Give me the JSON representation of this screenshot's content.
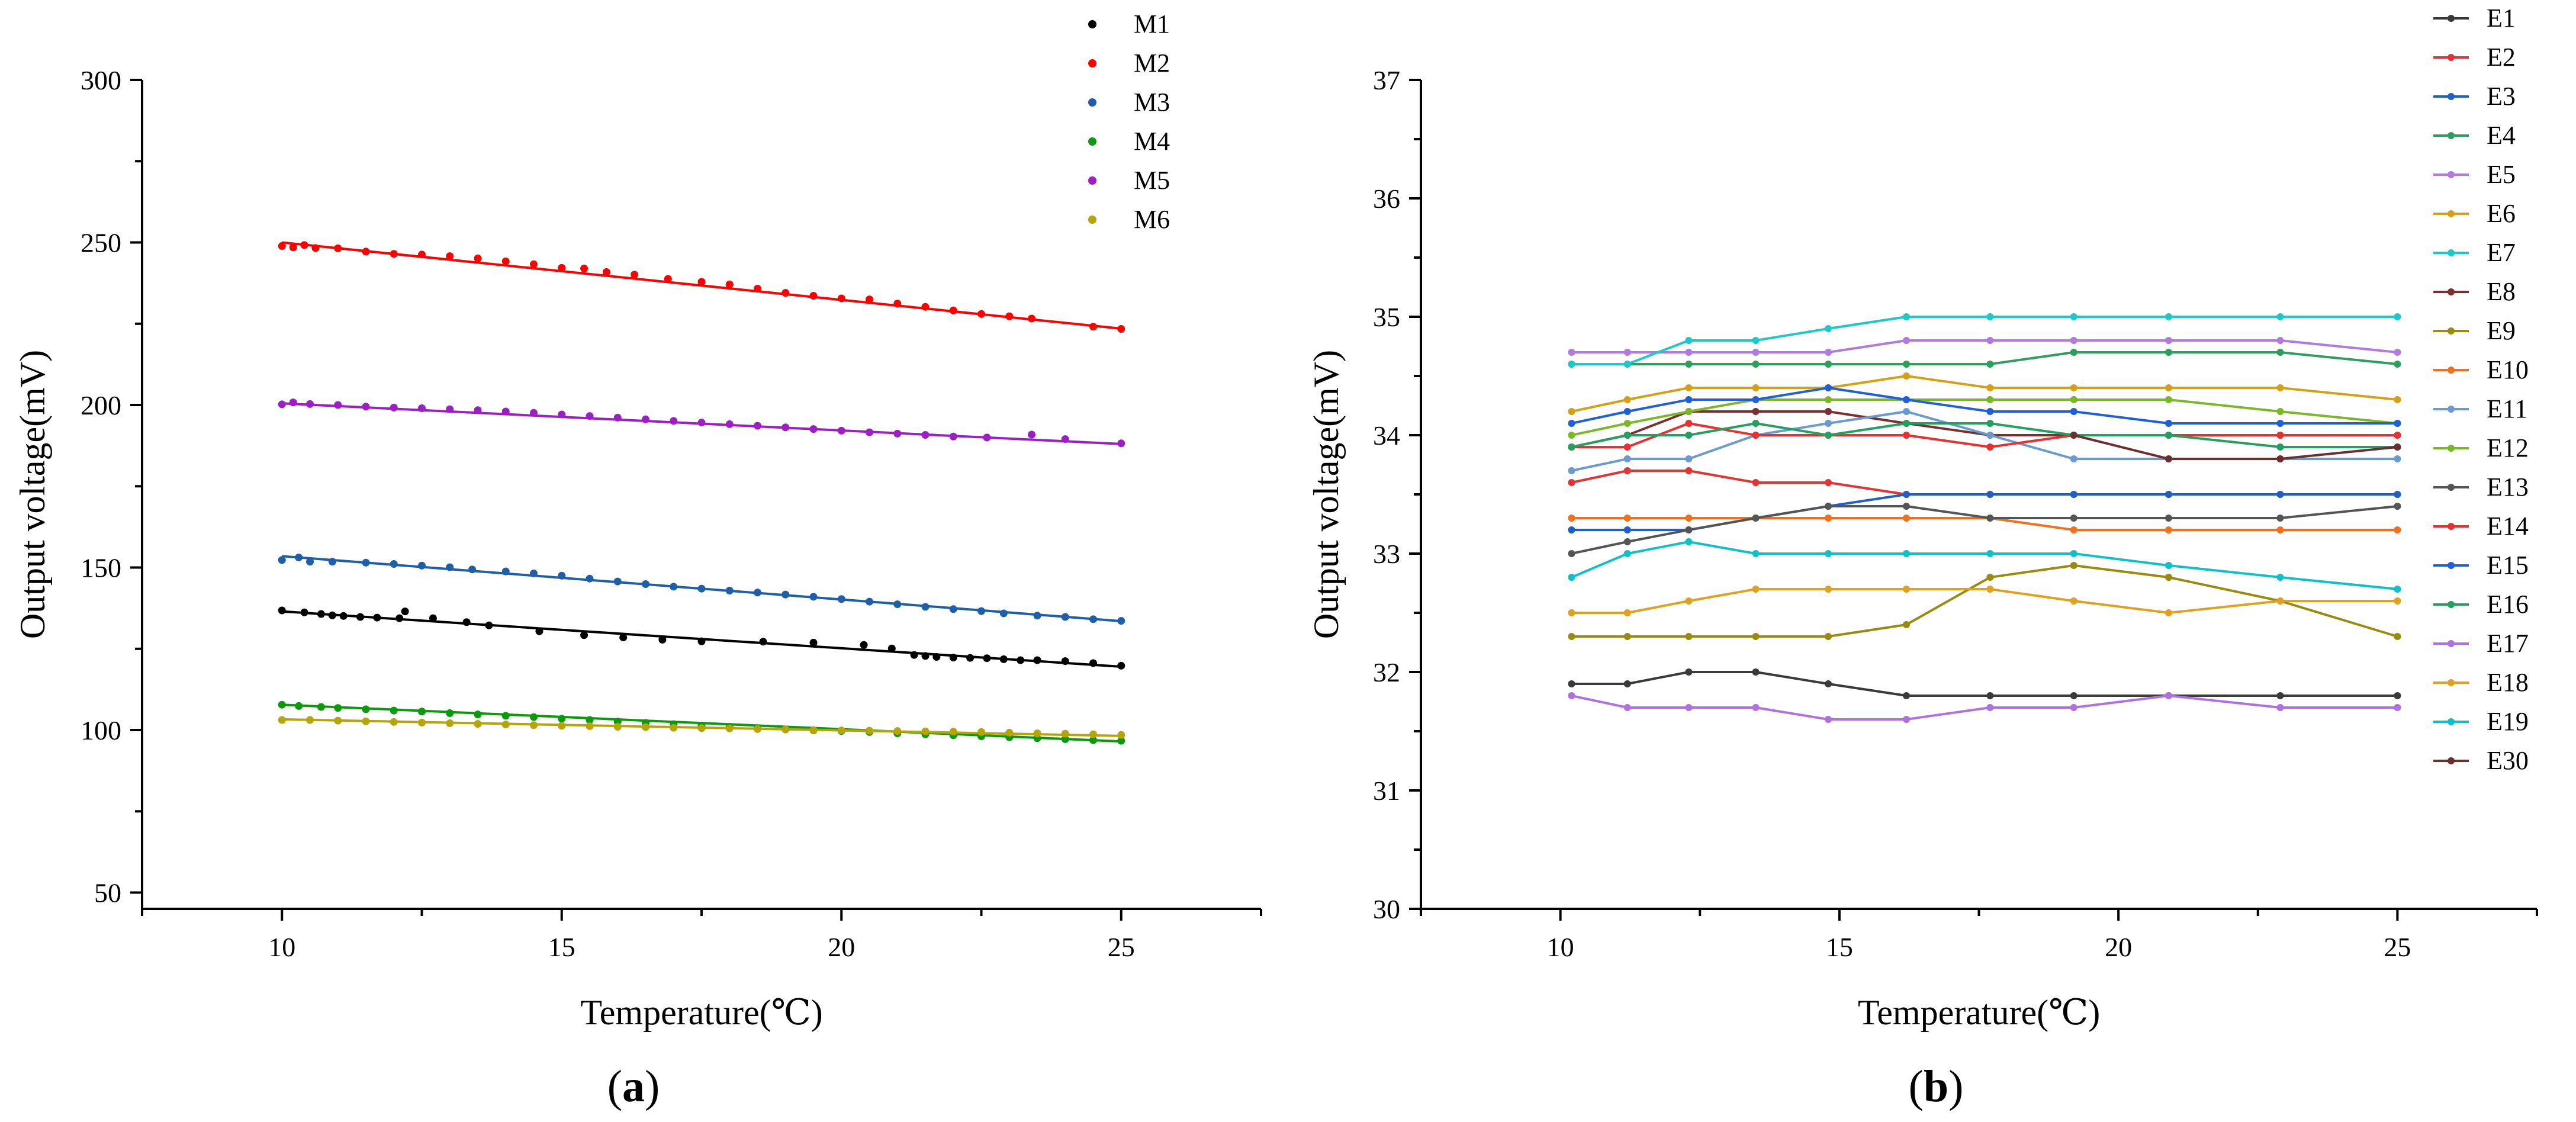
{
  "panel_labels": {
    "a_open": "(",
    "a_letter": "a",
    "a_close": ")",
    "b_open": "(",
    "b_letter": "b",
    "b_close": ")"
  },
  "chart_data": [
    {
      "panel": "a",
      "type": "scatter",
      "xlabel": "Temperature(℃)",
      "ylabel": "Output voltage(mV)",
      "xlim": [
        7.5,
        27.5
      ],
      "ylim": [
        45,
        300
      ],
      "xticks": [
        "10",
        "15",
        "20",
        "25"
      ],
      "yticks": [
        "50",
        "100",
        "150",
        "200",
        "250",
        "300"
      ],
      "grid": false,
      "legend_position": "top-right",
      "series": [
        {
          "name": "M1",
          "color": "#000000",
          "fit": [
            136.5,
            119.5
          ],
          "x": [
            10,
            10.4,
            10.7,
            10.9,
            11.1,
            11.4,
            11.7,
            12.1,
            12.2,
            12.7,
            13.3,
            13.7,
            14.6,
            15.4,
            16.1,
            16.8,
            17.5,
            18.6,
            19.5,
            20.4,
            20.9,
            21.3,
            21.5,
            21.7,
            22,
            22.3,
            22.6,
            22.9,
            23.2,
            23.5,
            24,
            24.5,
            25
          ],
          "y": [
            136.8,
            136.2,
            135.7,
            135.3,
            135.1,
            134.8,
            134.6,
            134.4,
            136.5,
            134.4,
            133.2,
            132.2,
            130.4,
            129.2,
            128.5,
            127.8,
            127.3,
            127.2,
            126.9,
            126.2,
            125.1,
            123.1,
            122.8,
            122.5,
            122.3,
            122.2,
            122.1,
            121.8,
            121.5,
            121.5,
            121.2,
            120.6,
            119.8
          ]
        },
        {
          "name": "M2",
          "color": "#ff0000",
          "fit": [
            250,
            223.5
          ],
          "x": [
            10,
            10.2,
            10.4,
            10.6,
            11,
            11.5,
            12,
            12.5,
            13,
            13.5,
            14,
            14.5,
            15,
            15.4,
            15.8,
            16.3,
            16.9,
            17.5,
            18,
            18.5,
            19,
            19.5,
            20,
            20.5,
            21,
            21.5,
            22,
            22.5,
            23,
            23.4,
            24.5,
            25
          ],
          "y": [
            248.9,
            248.5,
            249.2,
            248.3,
            248.2,
            247.2,
            246.5,
            246.3,
            245.8,
            245.1,
            244.2,
            243.3,
            242.2,
            242,
            240.9,
            240.1,
            238.8,
            237.9,
            237.1,
            235.8,
            234.5,
            233.6,
            232.8,
            232.5,
            231.2,
            230.2,
            229.1,
            228,
            227.3,
            226.6,
            224.1,
            223.4
          ]
        },
        {
          "name": "M3",
          "color": "#1f5fa8",
          "fit": [
            153.5,
            133.5
          ],
          "x": [
            10,
            10.3,
            10.5,
            10.9,
            11.5,
            12,
            12.5,
            13,
            13.4,
            14,
            14.5,
            15,
            15.5,
            16,
            16.5,
            17,
            17.5,
            18,
            18.5,
            19,
            19.5,
            20,
            20.5,
            21,
            21.5,
            22,
            22.5,
            22.9,
            23.5,
            24,
            24.5,
            25
          ],
          "y": [
            152.3,
            153.1,
            151.8,
            151.8,
            151.5,
            151.1,
            150.6,
            150.1,
            149.4,
            148.8,
            148.2,
            147.5,
            146.6,
            145.7,
            144.9,
            144.1,
            143.5,
            142.9,
            142.3,
            141.7,
            141,
            140.3,
            139.5,
            138.7,
            137.9,
            137.2,
            136.6,
            135.9,
            135.2,
            134.8,
            134.1,
            133.6
          ]
        },
        {
          "name": "M4",
          "color": "#0b9a0b",
          "fit": [
            107.8,
            96.5
          ],
          "x": [
            10,
            10.3,
            10.7,
            11,
            11.5,
            12,
            12.5,
            13,
            13.5,
            14,
            14.5,
            15,
            15.5,
            16,
            16.5,
            17,
            17.5,
            18,
            18.5,
            19,
            19.5,
            20,
            20.5,
            21,
            21.5,
            22,
            22.5,
            23,
            23.5,
            24,
            24.5,
            25
          ],
          "y": [
            107.8,
            107.4,
            107.1,
            106.8,
            106.4,
            106,
            105.7,
            105.2,
            104.8,
            104.4,
            104,
            103.5,
            103.1,
            102.6,
            102.2,
            101.8,
            101.4,
            101,
            100.6,
            100.2,
            99.9,
            99.7,
            99.4,
            99,
            98.7,
            98.4,
            98.1,
            97.8,
            97.5,
            97.2,
            96.9,
            96.7
          ]
        },
        {
          "name": "M5",
          "color": "#9b1fc2",
          "fit": [
            200.5,
            188
          ],
          "x": [
            10,
            10.2,
            10.5,
            11,
            11.5,
            12,
            12.5,
            13,
            13.5,
            14,
            14.5,
            15,
            15.5,
            16,
            16.5,
            17,
            17.5,
            18,
            18.5,
            19,
            19.5,
            20,
            20.5,
            21,
            21.5,
            22,
            22.6,
            23.4,
            24,
            25
          ],
          "y": [
            200.2,
            200.8,
            200.3,
            200,
            199.5,
            199.2,
            199,
            198.7,
            198.4,
            198,
            197.6,
            197.1,
            196.6,
            196.1,
            195.6,
            195.1,
            194.6,
            194.1,
            193.6,
            193.1,
            192.6,
            192.1,
            191.6,
            191.2,
            190.8,
            190.3,
            190,
            190.9,
            189.5,
            188.2
          ]
        },
        {
          "name": "M6",
          "color": "#b5a50b",
          "fit": [
            103.3,
            98.2
          ],
          "x": [
            10,
            10.5,
            11,
            11.5,
            12,
            12.5,
            13,
            13.5,
            14,
            14.5,
            15,
            15.5,
            16,
            16.5,
            17,
            17.5,
            18,
            18.5,
            19,
            19.5,
            20,
            20.5,
            21,
            21.5,
            22,
            22.5,
            23,
            23.5,
            24,
            24.5,
            25
          ],
          "y": [
            103.1,
            103.1,
            102.9,
            102.7,
            102.5,
            102.3,
            102.1,
            101.9,
            101.7,
            101.5,
            101.3,
            101.2,
            101,
            100.9,
            100.7,
            100.6,
            100.5,
            100.3,
            100.2,
            100,
            99.9,
            99.8,
            99.7,
            99.6,
            99.5,
            99.4,
            99.2,
            99,
            98.9,
            98.7,
            98.5
          ]
        }
      ]
    },
    {
      "panel": "b",
      "type": "line",
      "xlabel": "Temperature(℃)",
      "ylabel": "Output voltage(mV)",
      "xlim": [
        7.5,
        27.5
      ],
      "ylim": [
        30,
        37
      ],
      "xticks": [
        "10",
        "15",
        "20",
        "25"
      ],
      "yticks": [
        "30",
        "31",
        "32",
        "33",
        "34",
        "35",
        "36",
        "37"
      ],
      "grid": false,
      "legend_position": "top-right",
      "x": [
        10.2,
        11.2,
        12.3,
        13.5,
        14.8,
        16.2,
        17.7,
        19.2,
        20.9,
        22.9,
        25
      ],
      "series": [
        {
          "name": "E1",
          "color": "#3a3a3a",
          "values": [
            31.9,
            31.9,
            32,
            32,
            31.9,
            31.8,
            31.8,
            31.8,
            31.8,
            31.8,
            31.8
          ]
        },
        {
          "name": "E2",
          "color": "#e03535",
          "values": [
            33.6,
            33.7,
            33.7,
            33.6,
            33.6,
            33.5,
            33.5,
            33.5,
            33.5,
            33.5,
            33.5
          ]
        },
        {
          "name": "E3",
          "color": "#1f5fc8",
          "values": [
            33.2,
            33.2,
            33.2,
            33.3,
            33.4,
            33.5,
            33.5,
            33.5,
            33.5,
            33.5,
            33.5
          ]
        },
        {
          "name": "E4",
          "color": "#2e9e5e",
          "values": [
            34.6,
            34.6,
            34.6,
            34.6,
            34.6,
            34.6,
            34.6,
            34.7,
            34.7,
            34.7,
            34.6
          ]
        },
        {
          "name": "E5",
          "color": "#b07ae0",
          "values": [
            34.7,
            34.7,
            34.7,
            34.7,
            34.7,
            34.8,
            34.8,
            34.8,
            34.8,
            34.8,
            34.7
          ]
        },
        {
          "name": "E6",
          "color": "#d4a017",
          "values": [
            34.2,
            34.3,
            34.4,
            34.4,
            34.4,
            34.5,
            34.4,
            34.4,
            34.4,
            34.4,
            34.3
          ]
        },
        {
          "name": "E7",
          "color": "#1fc8c8",
          "values": [
            34.6,
            34.6,
            34.8,
            34.8,
            34.9,
            35,
            35,
            35,
            35,
            35,
            35
          ]
        },
        {
          "name": "E8",
          "color": "#7a3030",
          "values": [
            33.9,
            34,
            34.2,
            34.2,
            34.2,
            34.1,
            34,
            34,
            34,
            34,
            34
          ]
        },
        {
          "name": "E9",
          "color": "#9a8a10",
          "values": [
            32.3,
            32.3,
            32.3,
            32.3,
            32.3,
            32.4,
            32.8,
            32.9,
            32.8,
            32.6,
            32.3
          ]
        },
        {
          "name": "E10",
          "color": "#f07020",
          "values": [
            33.3,
            33.3,
            33.3,
            33.3,
            33.3,
            33.3,
            33.3,
            33.2,
            33.2,
            33.2,
            33.2
          ]
        },
        {
          "name": "E11",
          "color": "#6a9ad0",
          "values": [
            33.7,
            33.8,
            33.8,
            34,
            34.1,
            34.2,
            34,
            33.8,
            33.8,
            33.8,
            33.8
          ]
        },
        {
          "name": "E12",
          "color": "#7ab82a",
          "values": [
            34,
            34.1,
            34.2,
            34.3,
            34.3,
            34.3,
            34.3,
            34.3,
            34.3,
            34.2,
            34.1
          ]
        },
        {
          "name": "E13",
          "color": "#555555",
          "values": [
            33,
            33.1,
            33.2,
            33.3,
            33.4,
            33.4,
            33.3,
            33.3,
            33.3,
            33.3,
            33.4
          ]
        },
        {
          "name": "E14",
          "color": "#e83030",
          "values": [
            33.9,
            33.9,
            34.1,
            34,
            34,
            34,
            33.9,
            34,
            34,
            34,
            34
          ]
        },
        {
          "name": "E15",
          "color": "#1f60d8",
          "values": [
            34.1,
            34.2,
            34.3,
            34.3,
            34.4,
            34.3,
            34.2,
            34.2,
            34.1,
            34.1,
            34.1
          ]
        },
        {
          "name": "E16",
          "color": "#23a060",
          "values": [
            33.9,
            34,
            34,
            34.1,
            34,
            34.1,
            34.1,
            34,
            34,
            33.9,
            33.9
          ]
        },
        {
          "name": "E17",
          "color": "#b070e0",
          "values": [
            31.8,
            31.7,
            31.7,
            31.7,
            31.6,
            31.6,
            31.7,
            31.7,
            31.8,
            31.7,
            31.7
          ]
        },
        {
          "name": "E18",
          "color": "#e0a020",
          "values": [
            32.5,
            32.5,
            32.6,
            32.7,
            32.7,
            32.7,
            32.7,
            32.6,
            32.5,
            32.6,
            32.6
          ]
        },
        {
          "name": "E19",
          "color": "#10c0c8",
          "values": [
            32.8,
            33,
            33.1,
            33,
            33,
            33,
            33,
            33,
            32.9,
            32.8,
            32.7
          ]
        },
        {
          "name": "E30",
          "color": "#6a3030",
          "values": [
            null,
            null,
            null,
            null,
            null,
            null,
            null,
            34,
            33.8,
            33.8,
            33.9
          ]
        }
      ]
    }
  ]
}
